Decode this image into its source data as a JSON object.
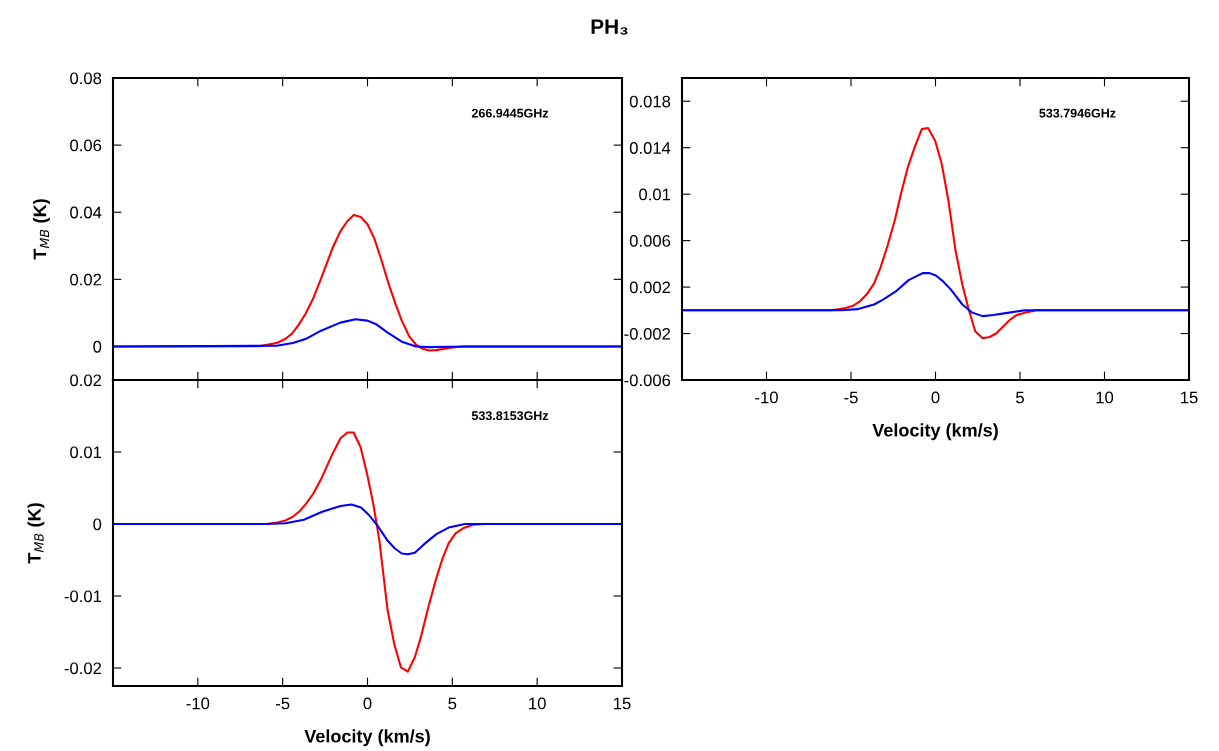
{
  "chart_data": [
    {
      "type": "line",
      "title": "PH₃",
      "ylabel": "T$_{MB}$ (K)",
      "annotations": [
        "266.9445GHz"
      ],
      "xlim": [
        -15,
        15
      ],
      "ylim": [
        -0.01,
        0.08
      ],
      "xticks": [
        -10,
        -5,
        0,
        5,
        10,
        15
      ],
      "yticks": [
        0,
        0.02,
        0.04,
        0.06,
        0.08
      ],
      "tick_labels": "y",
      "series": [
        {
          "color": "#ff0000",
          "x": [
            -15,
            -6.31,
            -5.31,
            -4.83,
            -4.45,
            -4.05,
            -3.64,
            -3.21,
            -2.74,
            -2.02,
            -1.6,
            -1.19,
            -0.81,
            -0.4,
            0,
            0.4,
            0.83,
            1.26,
            1.67,
            2.02,
            2.45,
            2.86,
            3.26,
            3.64,
            4.05,
            4.88,
            5.6,
            15
          ],
          "values": [
            0,
            0.0001,
            0.0011,
            0.0023,
            0.0038,
            0.0065,
            0.0098,
            0.0142,
            0.0202,
            0.0298,
            0.0343,
            0.0373,
            0.0392,
            0.0386,
            0.0364,
            0.0322,
            0.0256,
            0.0184,
            0.0124,
            0.0077,
            0.0031,
            0.0005,
            -0.0007,
            -0.0012,
            -0.0011,
            -0.0004,
            0,
            0
          ]
        },
        {
          "color": "#0000ff",
          "x": [
            -15,
            -5.36,
            -4.4,
            -3.57,
            -2.74,
            -1.6,
            -0.71,
            0,
            0.48,
            1.19,
            2.02,
            2.86,
            3.69,
            4.88,
            6,
            15
          ],
          "values": [
            0,
            0.0002,
            0.001,
            0.0024,
            0.0047,
            0.0071,
            0.0081,
            0.0077,
            0.0067,
            0.0041,
            0.0014,
            0,
            -0.0002,
            -0.0001,
            0,
            0
          ]
        }
      ]
    },
    {
      "type": "line",
      "xlabel": "Velocity (km/s)",
      "annotations": [
        "533.7946GHz"
      ],
      "xlim": [
        -15,
        15
      ],
      "ylim": [
        -0.006,
        0.02
      ],
      "xticks": [
        -10,
        -5,
        0,
        5,
        10,
        15
      ],
      "yticks": [
        -0.006,
        -0.002,
        0.002,
        0.006,
        0.01,
        0.014,
        0.018
      ],
      "series": [
        {
          "color": "#ff0000",
          "x": [
            -15,
            -6.13,
            -5.32,
            -4.86,
            -4.45,
            -4.06,
            -3.64,
            -3.25,
            -2.83,
            -2.4,
            -2.05,
            -1.64,
            -1.22,
            -0.81,
            -0.44,
            -0.02,
            0.37,
            0.78,
            1.18,
            1.59,
            1.94,
            2.35,
            2.79,
            3.2,
            3.59,
            4.0,
            4.42,
            4.82,
            5.28,
            5.97,
            15
          ],
          "values": [
            0,
            0,
            0.0002,
            0.0004,
            0.0008,
            0.0014,
            0.0023,
            0.0037,
            0.0056,
            0.0078,
            0.01,
            0.0123,
            0.0141,
            0.0156,
            0.0157,
            0.0146,
            0.0126,
            0.0093,
            0.0052,
            0.0022,
            0.0002,
            -0.0018,
            -0.0024,
            -0.0023,
            -0.002,
            -0.0014,
            -0.0008,
            -0.0004,
            -0.0002,
            0,
            0
          ]
        },
        {
          "color": "#0000ff",
          "x": [
            -15,
            -5.55,
            -4.63,
            -3.64,
            -3.13,
            -2.37,
            -1.59,
            -0.76,
            -0.35,
            0.02,
            0.44,
            0.9,
            1.59,
            2.17,
            2.79,
            3.43,
            4.35,
            5.28,
            15
          ],
          "values": [
            0,
            0,
            0.0001,
            0.0005,
            0.0009,
            0.0016,
            0.0026,
            0.0032,
            0.0032,
            0.003,
            0.0025,
            0.0018,
            0.0005,
            -0.0002,
            -0.0005,
            -0.0004,
            -0.0002,
            0,
            0
          ]
        }
      ]
    },
    {
      "type": "line",
      "xlabel": "Velocity (km/s)",
      "ylabel": "T$_{MB}$ (K)",
      "annotations": [
        "533.8153GHz"
      ],
      "xlim": [
        -15,
        15
      ],
      "ylim": [
        -0.0225,
        0.02
      ],
      "xticks": [
        -10,
        -5,
        0,
        5,
        10,
        15
      ],
      "yticks": [
        -0.02,
        -0.01,
        0,
        0.01,
        0.02
      ],
      "series": [
        {
          "color": "#ff0000",
          "x": [
            -15,
            -5.91,
            -5.31,
            -4.83,
            -4.4,
            -3.99,
            -3.63,
            -3.2,
            -2.74,
            -2.07,
            -1.59,
            -1.18,
            -0.82,
            -0.41,
            -0.02,
            0.34,
            0.7,
            1.18,
            1.59,
            1.97,
            2.38,
            2.79,
            3.17,
            3.58,
            4.01,
            4.42,
            4.78,
            5.19,
            5.63,
            6.23,
            6.95,
            15
          ],
          "values": [
            0,
            0,
            0.0002,
            0.0005,
            0.001,
            0.0018,
            0.0028,
            0.0042,
            0.0062,
            0.0097,
            0.0119,
            0.0127,
            0.0127,
            0.0107,
            0.0069,
            0.0028,
            -0.0023,
            -0.0119,
            -0.0168,
            -0.0199,
            -0.0205,
            -0.0185,
            -0.0155,
            -0.0116,
            -0.0079,
            -0.0048,
            -0.0027,
            -0.0013,
            -0.0006,
            -0.0001,
            0,
            0
          ]
        },
        {
          "color": "#0000ff",
          "x": [
            -15,
            -6.03,
            -4.83,
            -3.75,
            -2.67,
            -1.59,
            -0.94,
            -0.38,
            0.1,
            0.58,
            1.18,
            1.61,
            2.02,
            2.38,
            2.79,
            3.34,
            4.06,
            4.78,
            5.75,
            15
          ],
          "values": [
            0,
            0,
            0.0001,
            0.0006,
            0.0017,
            0.0025,
            0.0027,
            0.0023,
            0.0012,
            -0.0002,
            -0.0023,
            -0.0034,
            -0.0041,
            -0.0042,
            -0.004,
            -0.0028,
            -0.0014,
            -0.0005,
            0,
            0
          ]
        }
      ]
    }
  ]
}
